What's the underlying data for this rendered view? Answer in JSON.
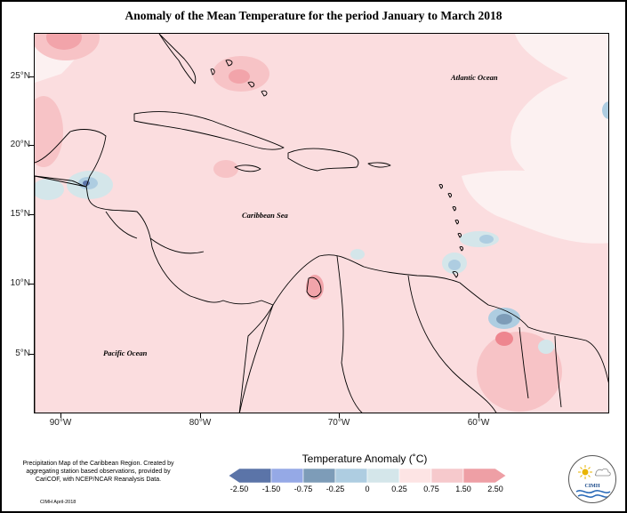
{
  "title": "Anomaly of the Mean Temperature for the period January to March 2018",
  "axes": {
    "latitude_ticks": [
      "25°N",
      "20°N",
      "15°N",
      "10°N",
      "5°N"
    ],
    "longitude_ticks": [
      "90°W",
      "80°W",
      "70°W",
      "60°W"
    ]
  },
  "map_labels": {
    "atlantic": "Atlantic Ocean",
    "caribbean": "Caribbean Sea",
    "pacific": "Pacific Ocean"
  },
  "legend": {
    "title": "Temperature Anomaly (˚C)",
    "labels": [
      "-2.50",
      "-1.50",
      "-0.75",
      "-0.25",
      "0",
      "0.25",
      "0.75",
      "1.50",
      "2.50"
    ],
    "colors": [
      "#5b74a8",
      "#95a9e6",
      "#7d9cb8",
      "#aecde1",
      "#d4e6ea",
      "#fde4e4",
      "#f6c9cc",
      "#ee9fa5",
      "#ef7580"
    ]
  },
  "credit": {
    "text": "Precipitation Map of the Caribbean Region. Created by aggregating station based observations, provided by CariCOF, with NCEP/NCAR Reanalysis Data.",
    "date": "CIMH April-2018"
  },
  "logo": {
    "text": "CIMH"
  }
}
